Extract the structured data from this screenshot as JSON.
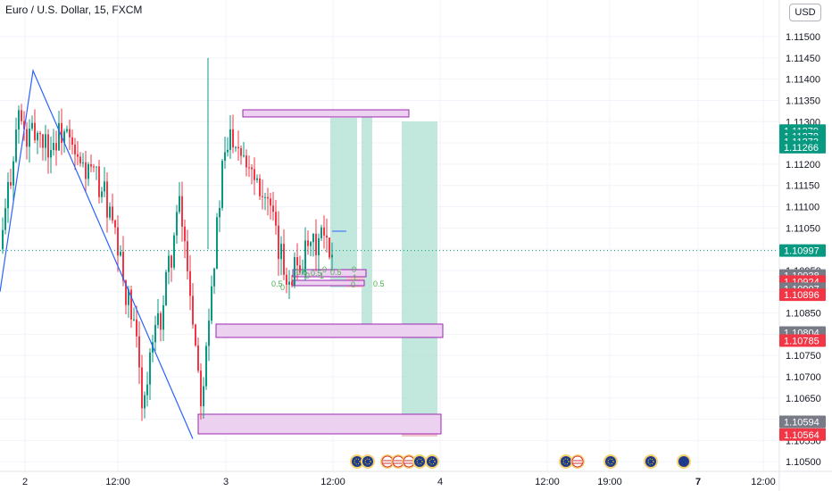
{
  "header": {
    "title": "Euro / U.S. Dollar, 15, FXCM",
    "currency_button": "USD"
  },
  "chart_data": {
    "type": "candlestick",
    "title": "Euro / U.S. Dollar, 15, FXCM",
    "ylim": [
      1.1049,
      1.1154
    ],
    "y_ticks": [
      "1.11500",
      "1.11450",
      "1.11400",
      "1.11350",
      "1.11300",
      "1.11250",
      "1.11200",
      "1.11150",
      "1.11100",
      "1.11050",
      "1.11000",
      "1.10950",
      "1.10900",
      "1.10850",
      "1.10800",
      "1.10750",
      "1.10700",
      "1.10650",
      "1.10600",
      "1.10550",
      "1.10500"
    ],
    "x_ticks": [
      "2",
      "12:00",
      "3",
      "12:00",
      "4",
      "12:00",
      "19:00",
      "7",
      "12:00"
    ],
    "current_price": "1.10997",
    "price_labels": [
      {
        "text": "1.11279",
        "price": 1.11279,
        "color": "#089981"
      },
      {
        "text": "1.11278",
        "price": 1.11266,
        "color": "#089981"
      },
      {
        "text": "1.11273",
        "price": 1.11253,
        "color": "#089981"
      },
      {
        "text": "1.11266",
        "price": 1.1124,
        "color": "#089981"
      },
      {
        "text": "1.10997",
        "price": 1.10997,
        "color": "#089981"
      },
      {
        "text": "1.10938",
        "price": 1.10938,
        "color": "#787b86"
      },
      {
        "text": "1.10924",
        "price": 1.10924,
        "color": "#f23645"
      },
      {
        "text": "1.10907",
        "price": 1.10907,
        "color": "#787b86"
      },
      {
        "text": "1.10896",
        "price": 1.10893,
        "color": "#f23645"
      },
      {
        "text": "1.10804",
        "price": 1.10804,
        "color": "#787b86"
      },
      {
        "text": "1.10785",
        "price": 1.10785,
        "color": "#f23645"
      },
      {
        "text": "1.10594",
        "price": 1.10594,
        "color": "#787b86"
      },
      {
        "text": "1.10564",
        "price": 1.10564,
        "color": "#f23645"
      }
    ],
    "zigzag": [
      [
        1.109,
        -0.02
      ],
      [
        1.1142,
        0.09
      ],
      [
        1.1056,
        0.58
      ],
      [
        1.1056,
        0.58
      ]
    ],
    "zigzag_line": [
      [
        0.0,
        1.109
      ],
      [
        36,
        1.1142
      ],
      [
        215,
        1.1056
      ]
    ],
    "fib_labels": [
      "0.5",
      "0",
      "0.5",
      "0",
      "0.5",
      "1",
      "0",
      "0.5",
      "0",
      "1",
      "0.5",
      "0"
    ],
    "events": [
      {
        "type": "eu"
      },
      {
        "type": "eu"
      },
      {
        "type": "us"
      },
      {
        "type": "us"
      },
      {
        "type": "us"
      },
      {
        "type": "eu"
      },
      {
        "type": "eu"
      },
      {
        "type": "eu"
      },
      {
        "type": "us"
      },
      {
        "type": "eu"
      },
      {
        "type": "eu"
      }
    ],
    "colors": {
      "up": "#089981",
      "down": "#f23645",
      "zone_fill": "#ecd2f0",
      "zone_stroke": "#9c27b0",
      "target": "#b7e3d6",
      "line": "#2962ff"
    }
  }
}
